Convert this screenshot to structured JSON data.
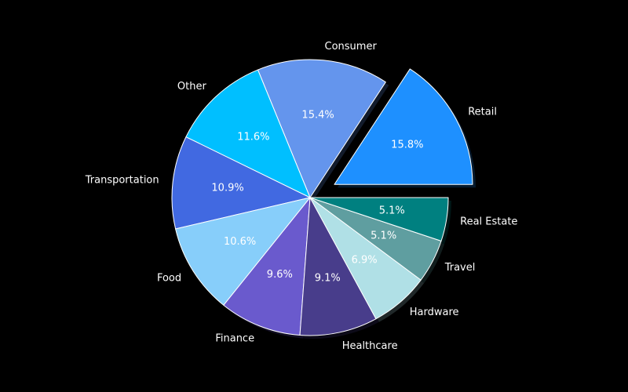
{
  "chart_data": {
    "type": "pie",
    "start_angle_deg": 0,
    "direction": "counterclockwise",
    "shadow": true,
    "slices": [
      {
        "label": "Retail",
        "value": 15.8,
        "pct_text": "15.8%",
        "color": "#1E90FF",
        "explode": true
      },
      {
        "label": "Consumer",
        "value": 15.4,
        "pct_text": "15.4%",
        "color": "#6495ED",
        "explode": false
      },
      {
        "label": "Other",
        "value": 11.6,
        "pct_text": "11.6%",
        "color": "#00BFFF",
        "explode": false
      },
      {
        "label": "Transportation",
        "value": 10.9,
        "pct_text": "10.9%",
        "color": "#4169E1",
        "explode": false
      },
      {
        "label": "Food",
        "value": 10.6,
        "pct_text": "10.6%",
        "color": "#87CEFA",
        "explode": false
      },
      {
        "label": "Finance",
        "value": 9.6,
        "pct_text": "9.6%",
        "color": "#6A5ACD",
        "explode": false
      },
      {
        "label": "Healthcare",
        "value": 9.1,
        "pct_text": "9.1%",
        "color": "#483D8B",
        "explode": false
      },
      {
        "label": "Hardware",
        "value": 6.9,
        "pct_text": "6.9%",
        "color": "#B0E0E6",
        "explode": false
      },
      {
        "label": "Travel",
        "value": 5.1,
        "pct_text": "5.1%",
        "color": "#5F9EA0",
        "explode": false
      },
      {
        "label": "Real Estate",
        "value": 5.1,
        "pct_text": "5.1%",
        "color": "#008080",
        "explode": false
      }
    ]
  }
}
